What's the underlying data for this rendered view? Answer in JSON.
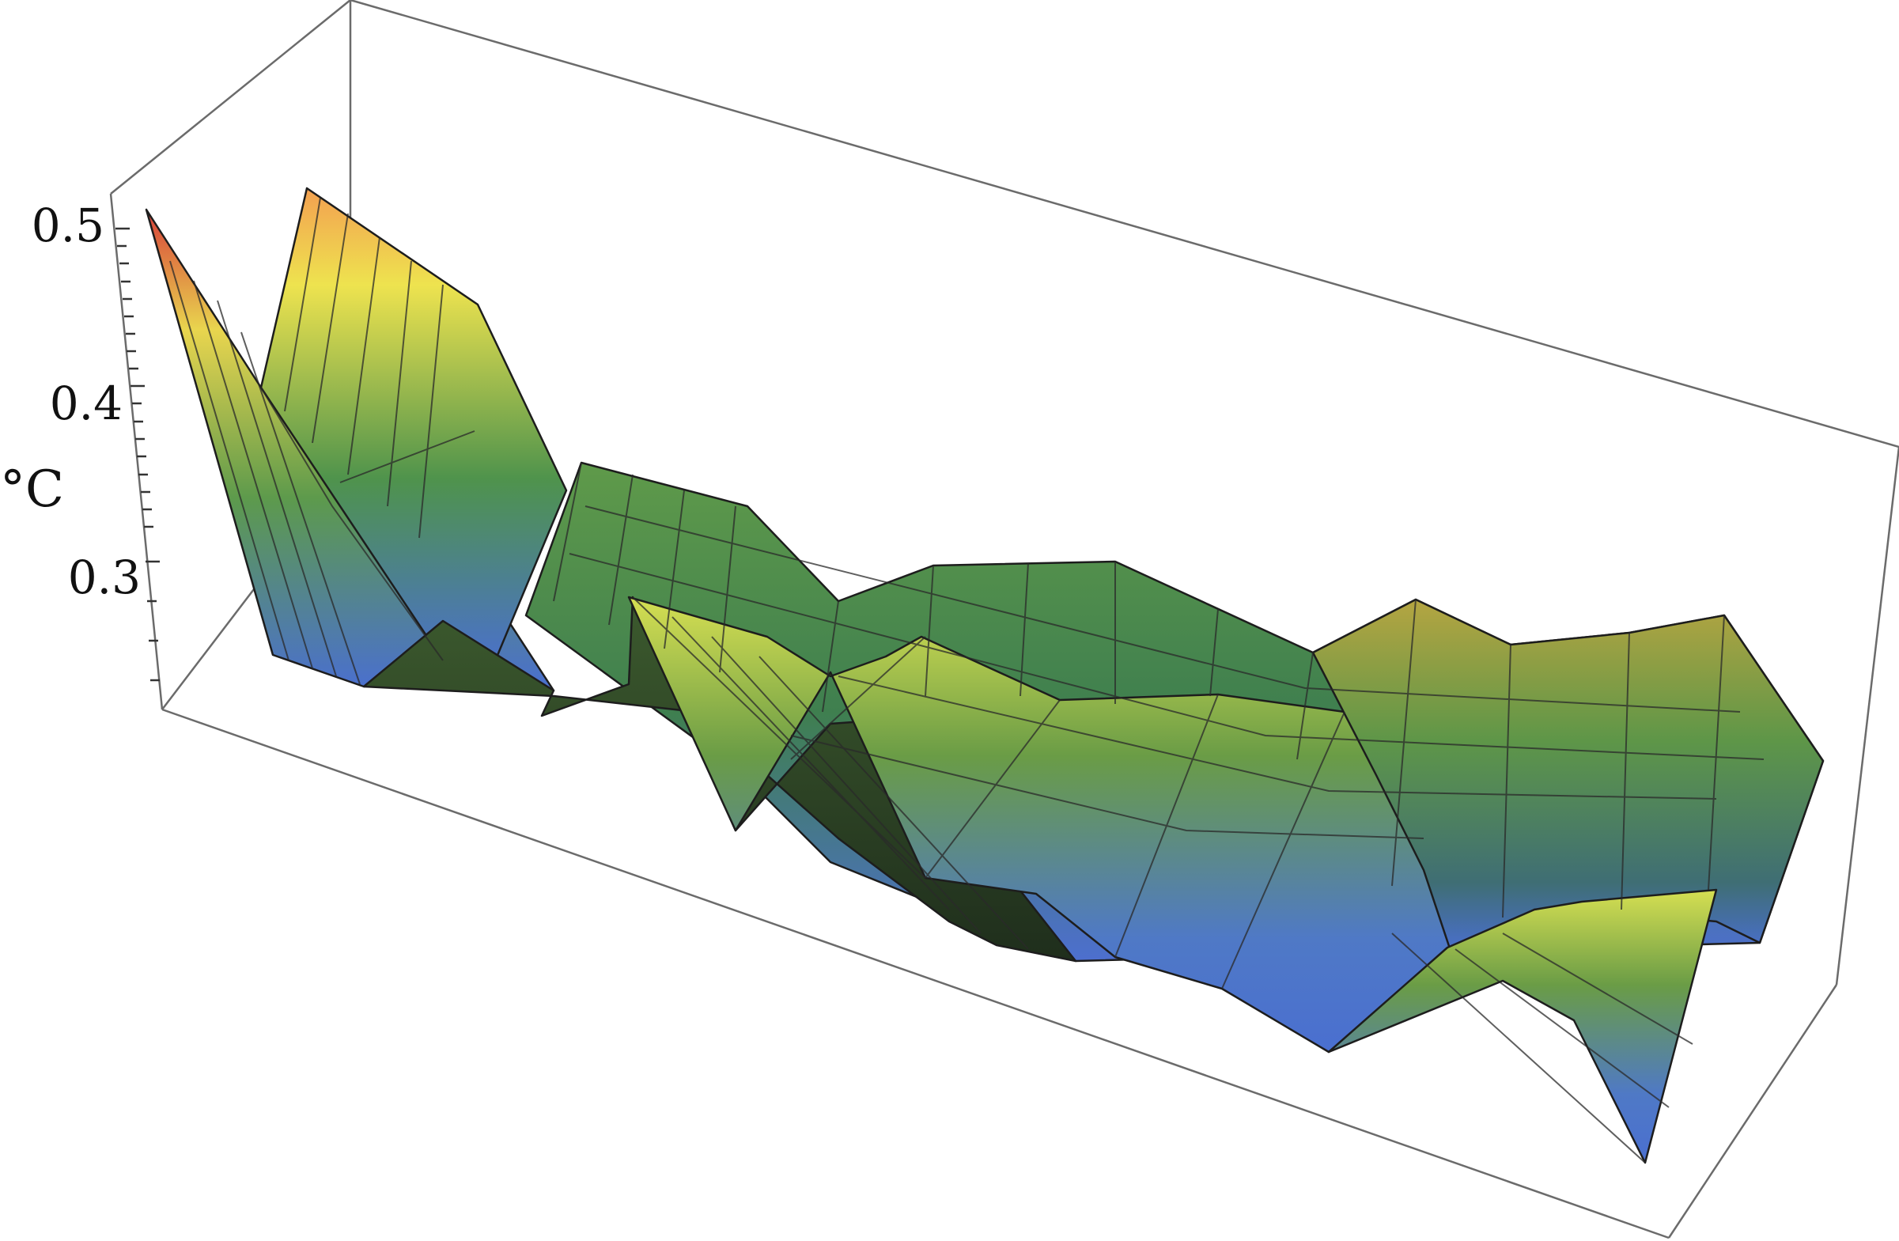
{
  "chart_data": {
    "type": "surface",
    "zlabel": "°C",
    "zlim": [
      0.22,
      0.52
    ],
    "zticks": [
      0.3,
      0.4,
      0.5
    ],
    "ztick_labels": [
      "0.3",
      "0.4",
      "0.5"
    ],
    "box": true,
    "mesh_lines": true,
    "colormap": [
      "#4a6fd0",
      "#4f9a4f",
      "#e8e04a",
      "#d8403a"
    ],
    "rows": [
      [
        0.51,
        0.25,
        0.24,
        0.27,
        0.25,
        0.28,
        0.26,
        0.23,
        0.24,
        0.25,
        0.26,
        0.24,
        0.23,
        0.24,
        0.25,
        0.26
      ],
      [
        0.48,
        0.27,
        0.28,
        0.3,
        0.32,
        0.31,
        0.28,
        0.27,
        0.29,
        0.3,
        0.28,
        0.3,
        0.31,
        0.29,
        0.28,
        0.27
      ],
      [
        0.45,
        0.3,
        0.34,
        0.33,
        0.32,
        0.3,
        0.29,
        0.3,
        0.31,
        0.32,
        0.3,
        0.31,
        0.33,
        0.32,
        0.3,
        0.29
      ],
      [
        0.42,
        0.34,
        0.36,
        0.35,
        0.33,
        0.31,
        0.31,
        0.31,
        0.3,
        0.3,
        0.29,
        0.3,
        0.32,
        0.31,
        0.3,
        0.28
      ]
    ]
  }
}
